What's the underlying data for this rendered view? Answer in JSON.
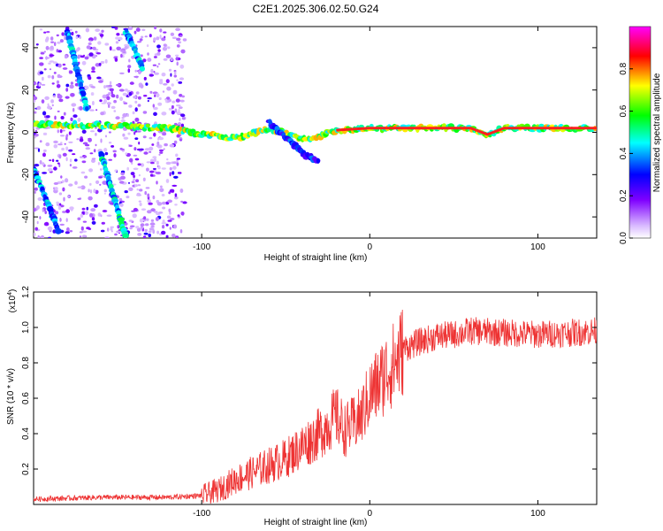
{
  "title": "C2E1.2025.306.02.50.G24",
  "chart_data": [
    {
      "type": "heatmap",
      "name": "spectrogram",
      "xlabel": "Height of straight line (km)",
      "ylabel": "Frequency (Hz)",
      "xlim": [
        -200,
        135
      ],
      "ylim": [
        -50,
        50
      ],
      "xticks": [
        -100,
        0,
        100
      ],
      "xtick_labels": [
        "-100",
        "0",
        "100"
      ],
      "yticks": [
        -40,
        -20,
        0,
        20,
        40
      ],
      "ytick_labels": [
        "-40",
        "-20",
        "0",
        "20",
        "40"
      ],
      "ridges": [
        {
          "name": "main-line",
          "points": [
            [
              -200,
              4
            ],
            [
              -150,
              3
            ],
            [
              -120,
              2
            ],
            [
              -100,
              -1
            ],
            [
              -80,
              -3
            ],
            [
              -60,
              2
            ],
            [
              -40,
              -3
            ],
            [
              -30,
              -2
            ],
            [
              -20,
              1
            ],
            [
              0,
              2
            ],
            [
              60,
              2
            ],
            [
              70,
              -1
            ],
            [
              80,
              2
            ],
            [
              100,
              2
            ],
            [
              135,
              2
            ]
          ],
          "amplitude": 0.7
        },
        {
          "name": "diagonal-1",
          "points": [
            [
              -200,
              -17
            ],
            [
              -185,
              -47
            ]
          ],
          "amplitude": 0.45
        },
        {
          "name": "diagonal-2",
          "points": [
            [
              -180,
              48
            ],
            [
              -168,
              10
            ]
          ],
          "amplitude": 0.45
        },
        {
          "name": "diagonal-3",
          "points": [
            [
              -160,
              -10
            ],
            [
              -145,
              -50
            ]
          ],
          "amplitude": 0.5
        },
        {
          "name": "diagonal-4",
          "points": [
            [
              -145,
              48
            ],
            [
              -135,
              30
            ]
          ],
          "amplitude": 0.45
        },
        {
          "name": "branch",
          "points": [
            [
              -60,
              5
            ],
            [
              -40,
              -10
            ],
            [
              -30,
              -14
            ]
          ],
          "amplitude": 0.35
        }
      ],
      "noise_region": {
        "xmin": -200,
        "xmax": -110
      }
    },
    {
      "type": "colorbar",
      "name": "amplitude-colorbar",
      "label": "Normalized spectral amplitude",
      "range": [
        0,
        1
      ],
      "ticks": [
        0,
        0.2,
        0.4,
        0.6,
        0.8
      ],
      "tick_labels": [
        "0.0",
        "0.2",
        "0.4",
        "0.6",
        "0.8"
      ],
      "colors": [
        "#ffffff",
        "#7f00ff",
        "#0000ff",
        "#00ffff",
        "#00ff00",
        "#ffff00",
        "#ff0000",
        "#ff00ff"
      ]
    },
    {
      "type": "line",
      "name": "snr",
      "xlabel": "Height of straight line (km)",
      "ylabel": "SNR (10 * v/v)",
      "scale_label": "(x10",
      "scale_exponent": "4",
      "scale_close": ")",
      "xlim": [
        -200,
        135
      ],
      "ylim": [
        0,
        1.2
      ],
      "xticks": [
        -100,
        0,
        100
      ],
      "xtick_labels": [
        "-100",
        "0",
        "100"
      ],
      "yticks": [
        0.2,
        0.4,
        0.6,
        0.8,
        1.0,
        1.2
      ],
      "ytick_labels": [
        "0.2",
        "0.4",
        "0.6",
        "0.8",
        "1.0",
        "1.2"
      ],
      "color": "#ee3333",
      "series": [
        {
          "name": "snr-envelope",
          "x": [
            -200,
            -160,
            -120,
            -100,
            -90,
            -80,
            -70,
            -60,
            -50,
            -40,
            -30,
            -20,
            -15,
            -10,
            -5,
            0,
            5,
            10,
            15,
            20,
            30,
            40,
            50,
            60,
            80,
            100,
            120,
            135
          ],
          "y": [
            0.03,
            0.04,
            0.04,
            0.05,
            0.08,
            0.14,
            0.18,
            0.22,
            0.26,
            0.33,
            0.4,
            0.5,
            0.42,
            0.45,
            0.5,
            0.62,
            0.68,
            0.75,
            0.8,
            0.88,
            0.92,
            0.95,
            0.96,
            0.98,
            0.97,
            0.96,
            0.97,
            0.98
          ]
        }
      ]
    }
  ]
}
